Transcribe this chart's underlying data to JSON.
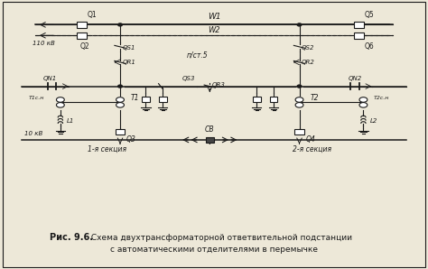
{
  "title_bold": "Рис. 9.6.",
  "title_rest": " Схема двухтрансформаторной ответвительной подстанции",
  "title_line2": "с автоматическими отделителями в перемычке",
  "background_color": "#ede8d8",
  "line_color": "#1a1a1a",
  "fig_width": 4.74,
  "fig_height": 2.98,
  "dpi": 100
}
